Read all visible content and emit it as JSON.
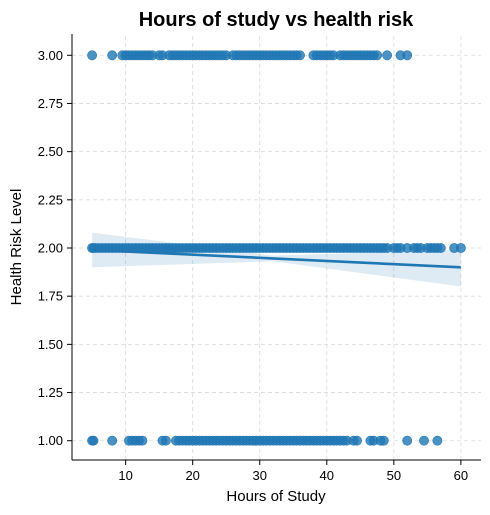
{
  "chart_data": {
    "type": "scatter",
    "title": "Hours of study vs health risk",
    "xlabel": "Hours of Study",
    "ylabel": "Health Risk Level",
    "xlim": [
      2,
      63
    ],
    "ylim": [
      0.9,
      3.1
    ],
    "xticks": [
      10,
      20,
      30,
      40,
      50,
      60
    ],
    "yticks": [
      1.0,
      1.25,
      1.5,
      1.75,
      2.0,
      2.25,
      2.5,
      2.75,
      3.0
    ],
    "ytick_labels": [
      "1.00",
      "1.25",
      "1.50",
      "1.75",
      "2.00",
      "2.25",
      "2.50",
      "2.75",
      "3.00"
    ],
    "grid": true,
    "colors": {
      "points": "#1f77b4",
      "line": "#1f77b4",
      "band": "#1f77b4"
    },
    "series": [
      {
        "y": 3.0,
        "x": [
          5,
          8,
          9.5,
          10,
          10.5,
          11,
          11.5,
          12,
          12.5,
          13,
          13.5,
          14,
          15,
          15.5,
          16.5,
          17,
          17.5,
          18,
          18.5,
          19,
          19.5,
          20,
          20.5,
          21,
          21.5,
          22,
          22.5,
          23,
          23.5,
          24,
          24.5,
          25,
          26,
          26.5,
          27,
          27.5,
          28,
          28.5,
          29,
          29.5,
          30,
          30.5,
          31,
          31.5,
          32,
          32.5,
          33,
          33.5,
          34,
          34.5,
          35,
          35.5,
          36,
          38,
          38.5,
          39,
          39.5,
          40,
          40.5,
          41,
          42,
          42.5,
          43,
          43.5,
          44,
          44.5,
          45,
          45.5,
          46,
          46.5,
          47,
          47.5,
          49,
          51,
          52
        ]
      },
      {
        "y": 2.0,
        "x": [
          5,
          5.2,
          5.5,
          6,
          6.5,
          7,
          7.5,
          8,
          8.5,
          9,
          9.5,
          10,
          10.5,
          11,
          11.5,
          12,
          12.5,
          13,
          13.5,
          14,
          14.5,
          15,
          15.5,
          16,
          16.5,
          17,
          17.5,
          18,
          18.5,
          19,
          19.5,
          20,
          20.5,
          21,
          21.5,
          22,
          22.5,
          23,
          23.5,
          24,
          24.5,
          25,
          25.5,
          26,
          26.5,
          27,
          27.5,
          28,
          28.5,
          29,
          29.5,
          30,
          30.5,
          31,
          31.5,
          32,
          32.5,
          33,
          33.5,
          34,
          34.5,
          35,
          35.5,
          36,
          36.5,
          37,
          37.5,
          38,
          38.5,
          39,
          39.5,
          40,
          40.5,
          41,
          41.5,
          42,
          42.5,
          43,
          43.5,
          44,
          44.5,
          45,
          45.5,
          46,
          46.5,
          47,
          47.5,
          48,
          48.5,
          49,
          50,
          50.5,
          51,
          52,
          53,
          53.5,
          54,
          55,
          55.5,
          56,
          56.5,
          57,
          59,
          60
        ]
      },
      {
        "y": 1.0,
        "x": [
          5,
          5.2,
          8,
          10.5,
          11,
          11.5,
          12,
          12.5,
          15.5,
          16,
          17.5,
          18,
          18.5,
          19,
          19.5,
          20,
          20.5,
          21,
          21.5,
          22,
          22.5,
          23,
          23.5,
          24,
          24.5,
          25,
          25.5,
          26,
          26.5,
          27,
          27.5,
          28,
          28.5,
          29,
          29.5,
          30,
          30.5,
          31,
          31.5,
          32,
          32.5,
          33,
          33.5,
          34,
          34.5,
          35,
          35.5,
          36,
          36.5,
          37,
          37.5,
          38,
          38.5,
          39,
          39.5,
          40,
          40.5,
          41,
          41.5,
          42,
          42.5,
          43,
          44,
          44.5,
          46.5,
          47,
          48,
          48.5,
          52,
          54.5,
          56.5
        ]
      }
    ],
    "regression": {
      "x": [
        5,
        60
      ],
      "y": [
        1.99,
        1.9
      ],
      "ci_lower": [
        1.9,
        1.8
      ],
      "ci_upper": [
        2.08,
        1.99
      ],
      "ci_mid_x": 32,
      "ci_mid_half_width": 0.015
    }
  }
}
